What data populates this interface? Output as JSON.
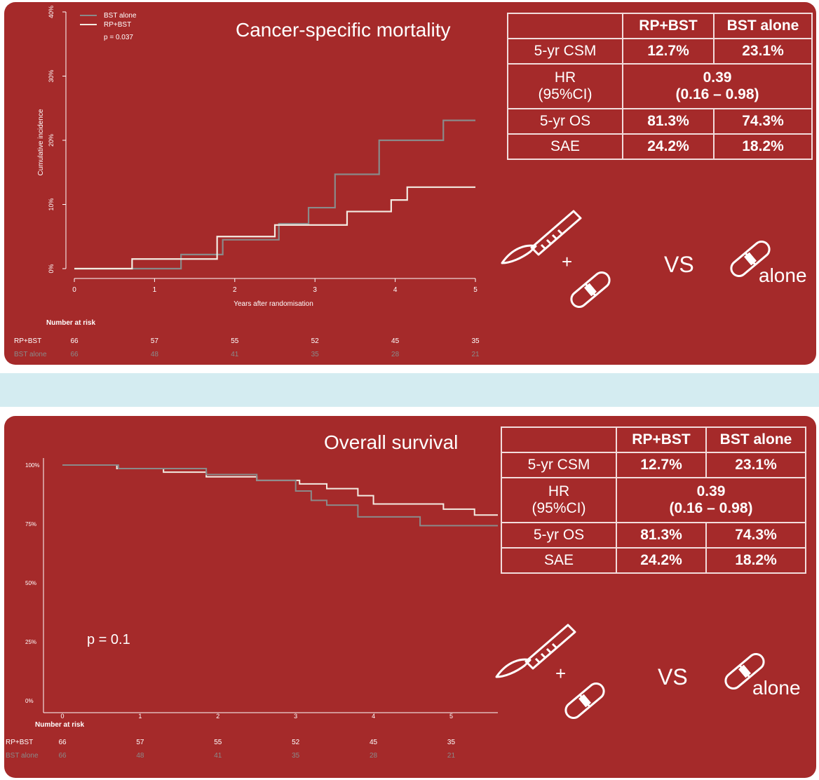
{
  "colors": {
    "panel_bg": "#a52a2a",
    "divider": "#d4ecf1",
    "rp_bst": "#f3ebe2",
    "bst_alone": "#8a8a8a"
  },
  "table": {
    "headers": [
      "",
      "RP+BST",
      "BST alone"
    ],
    "rows": [
      {
        "label": "5-yr CSM",
        "rp_bst": "12.7%",
        "bst_alone": "23.1%"
      },
      {
        "label_line1": "HR",
        "label_line2": "(95%CI)",
        "merged_line1": "0.39",
        "merged_line2": "(0.16 – 0.98)"
      },
      {
        "label": "5-yr OS",
        "rp_bst": "81.3%",
        "bst_alone": "74.3%"
      },
      {
        "label": "SAE",
        "rp_bst": "24.2%",
        "bst_alone": "18.2%"
      }
    ]
  },
  "comparison": {
    "plus": "+",
    "vs": "VS",
    "alone": "alone",
    "icons": [
      "scalpel-icon",
      "pill-icon"
    ]
  },
  "chart_data": [
    {
      "type": "line",
      "title": "Cancer-specific mortality",
      "xlabel": "Years after randomisation",
      "ylabel": "Cumulative incidence",
      "xlim": [
        0,
        5
      ],
      "ylim": [
        0,
        40
      ],
      "x_ticks": [
        "0",
        "1",
        "2",
        "3",
        "4",
        "5"
      ],
      "y_ticks": [
        "0%",
        "10%",
        "20%",
        "30%",
        "40%"
      ],
      "legend_position": "top-left",
      "legend": [
        "BST alone",
        "RP+BST"
      ],
      "pvalue": "p = 0.037",
      "series": [
        {
          "name": "BST alone",
          "color": "#8a8a8a",
          "step": true,
          "x": [
            0,
            1.33,
            1.85,
            2.55,
            2.92,
            3.25,
            3.8,
            4.6,
            5.0
          ],
          "y": [
            0,
            2.2,
            4.5,
            7.0,
            9.5,
            14.7,
            20.0,
            23.1,
            23.1
          ]
        },
        {
          "name": "RP+BST",
          "color": "#f3ebe2",
          "step": true,
          "x": [
            0,
            0.72,
            1.78,
            2.5,
            3.4,
            3.95,
            4.15,
            5.0
          ],
          "y": [
            0,
            1.5,
            5.0,
            6.8,
            8.9,
            10.7,
            12.7,
            12.7
          ]
        }
      ],
      "risk_table": {
        "heading": "Number at risk",
        "rows": [
          {
            "name": "RP+BST",
            "values": [
              "66",
              "57",
              "55",
              "52",
              "45",
              "35"
            ]
          },
          {
            "name": "BST alone",
            "values": [
              "66",
              "48",
              "41",
              "35",
              "28",
              "21"
            ]
          }
        ]
      }
    },
    {
      "type": "line",
      "title": "Overall survival",
      "xlim": [
        0,
        5.6
      ],
      "ylim": [
        0,
        100
      ],
      "x_ticks": [
        "0",
        "1",
        "2",
        "3",
        "4",
        "5"
      ],
      "y_ticks": [
        "0%",
        "25%",
        "50%",
        "75%",
        "100%"
      ],
      "pvalue": "p = 0.1",
      "series": [
        {
          "name": "RP+BST",
          "color": "#f3ebe2",
          "step": true,
          "x": [
            0,
            0.7,
            1.3,
            1.85,
            2.5,
            3.05,
            3.4,
            3.8,
            4.0,
            4.9,
            5.3,
            5.6
          ],
          "y": [
            100,
            98.5,
            97,
            95,
            93.5,
            92,
            90,
            87,
            83.5,
            81.3,
            78.8,
            78.8
          ]
        },
        {
          "name": "BST alone",
          "color": "#8a8a8a",
          "step": true,
          "x": [
            0,
            0.72,
            1.85,
            2.5,
            3.0,
            3.2,
            3.4,
            3.8,
            4.6,
            5.6
          ],
          "y": [
            100,
            98.5,
            96,
            93.5,
            89,
            85,
            83,
            78,
            74.3,
            74.3
          ]
        }
      ],
      "risk_table": {
        "heading": "Number at risk",
        "rows": [
          {
            "name": "RP+BST",
            "values": [
              "66",
              "57",
              "55",
              "52",
              "45",
              "35"
            ]
          },
          {
            "name": "BST alone",
            "values": [
              "66",
              "48",
              "41",
              "35",
              "28",
              "21"
            ]
          }
        ]
      }
    }
  ]
}
